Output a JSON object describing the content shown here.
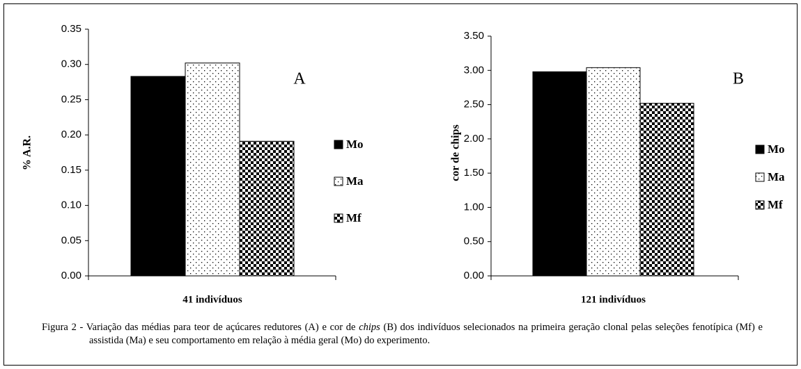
{
  "chart_data": [
    {
      "type": "bar",
      "panel": "A",
      "ylabel": "% A.R.",
      "categories": [
        "41 indivíduos"
      ],
      "series": [
        {
          "name": "Mo",
          "color": "#000000",
          "pattern": "solid",
          "values": [
            0.283
          ]
        },
        {
          "name": "Ma",
          "color": "#000000",
          "pattern": "dots",
          "values": [
            0.302
          ]
        },
        {
          "name": "Mf",
          "color": "#000000",
          "pattern": "checker",
          "values": [
            0.191
          ]
        }
      ],
      "ylim": [
        0,
        0.35
      ],
      "yticks": [
        {
          "value": 0,
          "label": "0.00"
        },
        0.05,
        {
          "value": 0.1,
          "label": "0.10"
        },
        0.15,
        {
          "value": 0.2,
          "label": "0.20"
        },
        0.25,
        {
          "value": 0.3,
          "label": "0.30"
        },
        0.35
      ],
      "grid": false
    },
    {
      "type": "bar",
      "panel": "B",
      "ylabel": "cor de chips",
      "categories": [
        "121 indivíduos"
      ],
      "series": [
        {
          "name": "Mo",
          "color": "#000000",
          "pattern": "solid",
          "values": [
            2.98
          ]
        },
        {
          "name": "Ma",
          "color": "#000000",
          "pattern": "dots",
          "values": [
            3.04
          ]
        },
        {
          "name": "Mf",
          "color": "#000000",
          "pattern": "checker",
          "values": [
            2.52
          ]
        }
      ],
      "ylim": [
        0,
        3.5
      ],
      "yticks": [
        {
          "value": 0,
          "label": "0.00"
        },
        {
          "value": 0.5,
          "label": "0.50"
        },
        {
          "value": 1,
          "label": "1.00"
        },
        {
          "value": 1.5,
          "label": "1.50"
        },
        {
          "value": 2,
          "label": "2.00"
        },
        {
          "value": 2.5,
          "label": "2.50"
        },
        {
          "value": 3,
          "label": "3.00"
        },
        {
          "value": 3.5,
          "label": "3.50"
        }
      ],
      "grid": false
    }
  ],
  "caption": [
    "Figura 2 - Variação das médias para teor de açúcares redutores (A) e cor de ",
    "chips",
    " (B) dos indivíduos selecionados na primeira geração clonal pelas seleções fenotípica (Mf) e assistida (Ma) e seu comportamento em relação à média geral (Mo) do experimento."
  ]
}
